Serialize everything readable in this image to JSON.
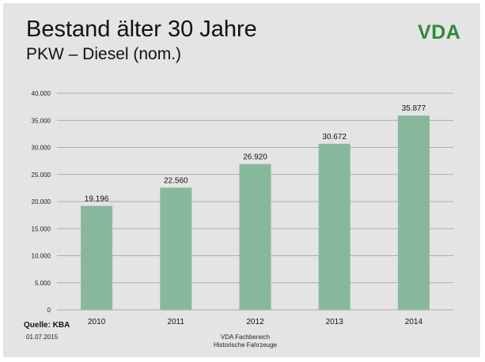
{
  "slide": {
    "title": "Bestand älter 30 Jahre",
    "subtitle": "PKW – Diesel (nom.)",
    "logo": "VDA",
    "source": "Quelle: KBA",
    "date": "01.07.2015",
    "footer_line1": "VDA Fachbereich",
    "footer_line2": "Historische Fahrzeuge"
  },
  "colors": {
    "bar": "#88b89c",
    "logo": "#2e8a3a",
    "background": "#e4e4e4",
    "grid": "#9a9a9a"
  },
  "chart_data": {
    "type": "bar",
    "categories": [
      "2010",
      "2011",
      "2012",
      "2013",
      "2014"
    ],
    "values": [
      19196,
      22560,
      26920,
      30672,
      35877
    ],
    "value_labels": [
      "19.196",
      "22.560",
      "26.920",
      "30.672",
      "35.877"
    ],
    "yticks": [
      0,
      5000,
      10000,
      15000,
      20000,
      25000,
      30000,
      35000,
      40000
    ],
    "ytick_labels": [
      "0",
      "5.000",
      "10.000",
      "15.000",
      "20.000",
      "25.000",
      "30.000",
      "35.000",
      "40.000"
    ],
    "ylim": [
      0,
      40000
    ],
    "grid": true,
    "legend": false
  }
}
